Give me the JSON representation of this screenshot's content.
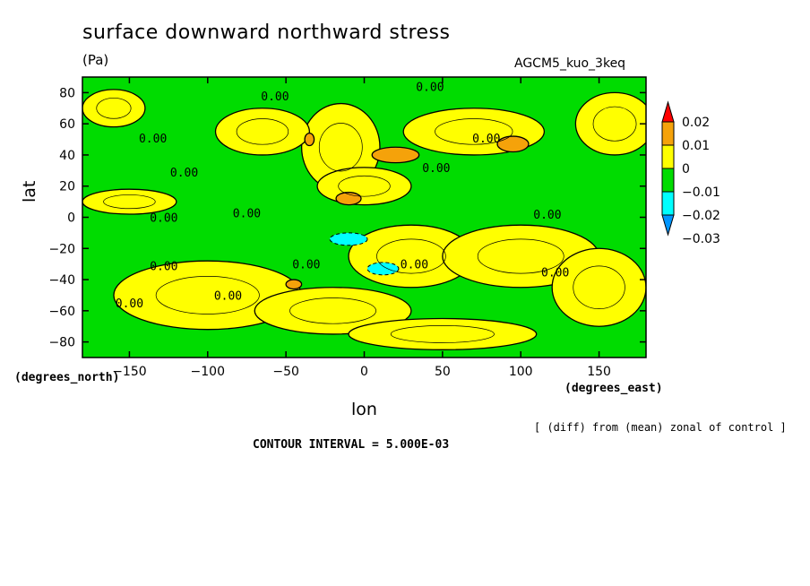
{
  "chart_data": {
    "type": "contour",
    "title": "surface downward northward stress",
    "units": "(Pa)",
    "dataset": "AGCM5_kuo_3keq",
    "xlabel": "lon",
    "ylabel": "lat",
    "x_units": "(degrees_east)",
    "y_units": "(degrees_north)",
    "xlim": [
      -180,
      180
    ],
    "ylim": [
      -90,
      90
    ],
    "x_ticks": [
      -150,
      -100,
      -50,
      0,
      50,
      100,
      150
    ],
    "x_tick_labels": [
      "−150",
      "−100",
      "−50",
      "0",
      "50",
      "100",
      "150"
    ],
    "y_ticks": [
      80,
      60,
      40,
      20,
      0,
      -20,
      -40,
      -60,
      -80
    ],
    "y_tick_labels": [
      "80",
      "60",
      "40",
      "20",
      "0",
      "−20",
      "−40",
      "−60",
      "−80"
    ],
    "note": "[ (diff) from (mean) zonal of control ]",
    "contour_interval": "CONTOUR INTERVAL = 5.000E-03",
    "contour_label": "0.00",
    "colorbar": {
      "levels": [
        -0.03,
        -0.02,
        -0.01,
        0,
        0.01,
        0.02
      ],
      "labels": [
        "0.02",
        "0.01",
        "0",
        "−0.01",
        "−0.02",
        "−0.03"
      ],
      "colors": [
        "#ff0000",
        "#f5a20a",
        "#ffff00",
        "#00dc00",
        "#00ffff",
        "#0096ff"
      ]
    },
    "regions_positive": [
      {
        "lon": -15,
        "lat": 45,
        "rx": 25,
        "ry": 28
      },
      {
        "lon": -65,
        "lat": 55,
        "rx": 30,
        "ry": 15
      },
      {
        "lon": 0,
        "lat": 20,
        "rx": 30,
        "ry": 12
      },
      {
        "lon": 70,
        "lat": 55,
        "rx": 45,
        "ry": 15
      },
      {
        "lon": -150,
        "lat": 10,
        "rx": 30,
        "ry": 8
      },
      {
        "lon": 30,
        "lat": -25,
        "rx": 40,
        "ry": 20
      },
      {
        "lon": 100,
        "lat": -25,
        "rx": 50,
        "ry": 20
      },
      {
        "lon": -100,
        "lat": -50,
        "rx": 60,
        "ry": 22
      },
      {
        "lon": 150,
        "lat": -45,
        "rx": 30,
        "ry": 25
      },
      {
        "lon": -20,
        "lat": -60,
        "rx": 50,
        "ry": 15
      },
      {
        "lon": 50,
        "lat": -75,
        "rx": 60,
        "ry": 10
      },
      {
        "lon": -160,
        "lat": 70,
        "rx": 20,
        "ry": 12
      },
      {
        "lon": 160,
        "lat": 60,
        "rx": 25,
        "ry": 20
      }
    ],
    "regions_strong_positive": [
      {
        "lon": 20,
        "lat": 40,
        "rx": 15,
        "ry": 5
      },
      {
        "lon": -10,
        "lat": 12,
        "rx": 8,
        "ry": 4
      },
      {
        "lon": 95,
        "lat": 47,
        "rx": 10,
        "ry": 5
      },
      {
        "lon": -35,
        "lat": 50,
        "rx": 3,
        "ry": 4
      },
      {
        "lon": -45,
        "lat": -43,
        "rx": 5,
        "ry": 3
      }
    ],
    "regions_strong_negative": [
      {
        "lon": -10,
        "lat": -14,
        "rx": 12,
        "ry": 4
      },
      {
        "lon": 12,
        "lat": -33,
        "rx": 10,
        "ry": 4
      }
    ],
    "zero_contour_labels": [
      {
        "lon": 42,
        "lat": 84
      },
      {
        "lon": -57,
        "lat": 78
      },
      {
        "lon": -135,
        "lat": 51
      },
      {
        "lon": 78,
        "lat": 51
      },
      {
        "lon": -115,
        "lat": 29
      },
      {
        "lon": 46,
        "lat": 32
      },
      {
        "lon": -128,
        "lat": 0
      },
      {
        "lon": -75,
        "lat": 3
      },
      {
        "lon": 117,
        "lat": 2
      },
      {
        "lon": -128,
        "lat": -31
      },
      {
        "lon": -37,
        "lat": -30
      },
      {
        "lon": 32,
        "lat": -30
      },
      {
        "lon": 122,
        "lat": -35
      },
      {
        "lon": -87,
        "lat": -50
      },
      {
        "lon": -150,
        "lat": -55
      }
    ]
  }
}
